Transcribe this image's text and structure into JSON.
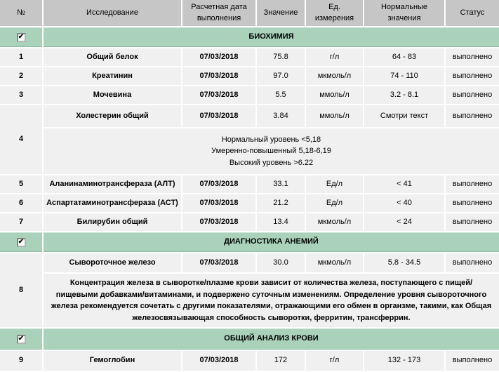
{
  "colors": {
    "header_bg": "#c6c6c6",
    "section_bg": "#aad2ba",
    "row_bg": "#f0f0f0",
    "separator": "#ffffff",
    "text": "#000000"
  },
  "table": {
    "icons": {
      "checkbox_check": "✔"
    },
    "header": {
      "cells": [
        "№",
        "Исследование",
        "Расчетная дата\nвыполнения",
        "Значение",
        "Ед.\nизмерения",
        "Нормальные\nзначения",
        "Статус"
      ]
    },
    "sections": [
      {
        "title": "БИОХИМИЯ",
        "checkbox_checked": true
      },
      {
        "title": "ДИАГНОСТИКА АНЕМИЙ",
        "checkbox_checked": true
      },
      {
        "title": "ОБЩИЙ АНАЛИЗ КРОВИ",
        "checkbox_checked": true
      }
    ],
    "tests": [
      {
        "num": "1",
        "name": "Общий белок",
        "date": "07/03/2018",
        "value": "75.8",
        "unit": "г/л",
        "normal": "64 - 83",
        "status": "выполнено"
      },
      {
        "num": "2",
        "name": "Креатинин",
        "date": "07/03/2018",
        "value": "97.0",
        "unit": "мкмоль/л",
        "normal": "74 - 110",
        "status": "выполнено"
      },
      {
        "num": "3",
        "name": "Мочевина",
        "date": "07/03/2018",
        "value": "5.5",
        "unit": "ммоль/л",
        "normal": "3.2 - 8.1",
        "status": "выполнено"
      },
      {
        "num": "4",
        "name": "Холестерин общий",
        "date": "07/03/2018",
        "value": "3.84",
        "unit": "ммоль/л",
        "normal": "Смотри текст",
        "status": "выполнено",
        "note": "Нормальный уровень <5,18\nУмеренно-повышенный 5,18-6,19\nВысокий уровень >6.22"
      },
      {
        "num": "5",
        "name": "Аланинаминотрансфераза (АЛТ)",
        "date": "07/03/2018",
        "value": "33.1",
        "unit": "Ед/л",
        "normal": "< 41",
        "status": "выполнено"
      },
      {
        "num": "6",
        "name": "Аспартатаминотрансфераза (АСТ)",
        "date": "07/03/2018",
        "value": "21.2",
        "unit": "Ед/л",
        "normal": "< 40",
        "status": "выполнено"
      },
      {
        "num": "7",
        "name": "Билирубин общий",
        "date": "07/03/2018",
        "value": "13.4",
        "unit": "мкмоль/л",
        "normal": "< 24",
        "status": "выполнено"
      },
      {
        "num": "8",
        "name": "Сывороточное железо",
        "date": "07/03/2018",
        "value": "30.0",
        "unit": "мкмоль/л",
        "normal": "5.8 - 34.5",
        "status": "выполнено",
        "note": "Концентрация железа в сыворотке/плазме крови зависит от количества железа, поступающего с пищей/пищевыми добавками/витаминами, и подвержено суточным изменениям. Определение уровня сывороточного железа рекомендуется сочетать с другими показателями, отражающими его обмен в органзме, такими, как Общая железосвязывающая способность сыворотки, ферритин, трансферрин."
      },
      {
        "num": "9",
        "name": "Гемоглобин",
        "date": "07/03/2018",
        "value": "172",
        "unit": "г/л",
        "normal": "132 - 173",
        "status": "выполнено"
      }
    ]
  }
}
